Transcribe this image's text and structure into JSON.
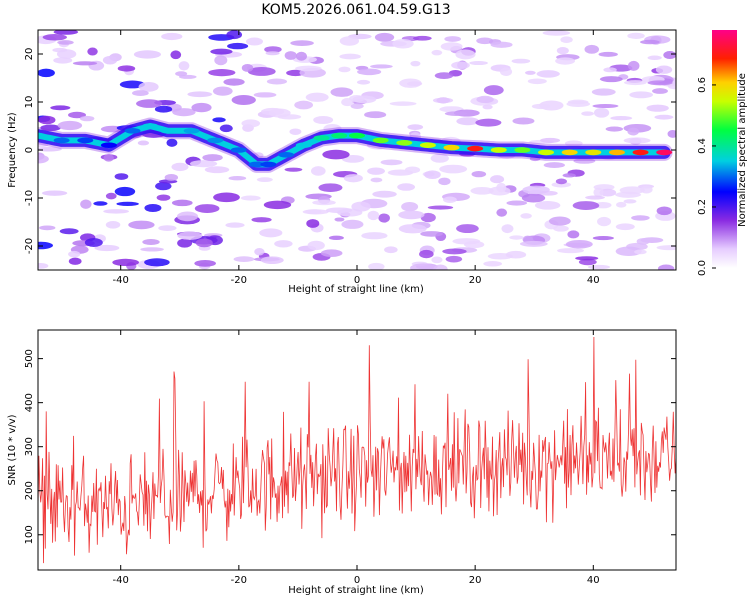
{
  "title": "KOM5.2026.061.04.59.G13",
  "colors": {
    "snr_line": "#ee3333",
    "track": "#00c0c0"
  },
  "chart_data": [
    {
      "type": "heatmap",
      "title": "KOM5.2026.061.04.59.G13",
      "xlabel": "Height of straight line (km)",
      "ylabel": "Frequency (Hz)",
      "xlim": [
        -54,
        54
      ],
      "ylim": [
        -25,
        25
      ],
      "xticks": [
        -40,
        -20,
        0,
        20,
        40
      ],
      "yticks": [
        -20,
        -10,
        0,
        10,
        20
      ],
      "xtick_labels": [
        "-40",
        "-20",
        "0",
        "20",
        "40"
      ],
      "ytick_labels": [
        "-20",
        "-10",
        "0",
        "10",
        "20"
      ],
      "colorbar": {
        "label": "Normalized spectral amplitude",
        "range": [
          0,
          0.78
        ],
        "ticks": [
          0.0,
          0.2,
          0.4,
          0.6
        ],
        "tick_labels": [
          "0.0",
          "0.2",
          "0.4",
          "0.6"
        ],
        "colormap": "rainbow (white-violet-blue-cyan-green-yellow-red-magenta)"
      },
      "ridge": {
        "x": [
          -54,
          -50,
          -46,
          -42,
          -38,
          -35,
          -32,
          -28,
          -24,
          -20,
          -17,
          -15,
          -12,
          -9,
          -6,
          -3,
          0,
          4,
          8,
          12,
          16,
          20,
          24,
          28,
          32,
          36,
          40,
          44,
          48,
          52
        ],
        "frequency": [
          3,
          2,
          2,
          1,
          4,
          5,
          4,
          4,
          2,
          0,
          -3,
          -3,
          -1,
          1,
          2.5,
          3,
          3,
          2,
          1.5,
          1,
          0.5,
          0.3,
          0,
          0,
          -0.5,
          -0.5,
          -0.5,
          -0.5,
          -0.5,
          -0.5
        ],
        "amplitude": [
          0.35,
          0.3,
          0.28,
          0.25,
          0.3,
          0.35,
          0.35,
          0.33,
          0.32,
          0.3,
          0.3,
          0.28,
          0.3,
          0.35,
          0.4,
          0.42,
          0.45,
          0.5,
          0.52,
          0.55,
          0.6,
          0.7,
          0.55,
          0.5,
          0.55,
          0.6,
          0.58,
          0.62,
          0.7,
          0.75
        ]
      }
    },
    {
      "type": "line",
      "xlabel": "Height of straight line (km)",
      "ylabel": "SNR (10 * v/v)",
      "xlim": [
        -54,
        54
      ],
      "ylim": [
        20,
        565
      ],
      "xticks": [
        -40,
        -20,
        0,
        20,
        40
      ],
      "yticks": [
        100,
        200,
        300,
        400,
        500
      ],
      "xtick_labels": [
        "-40",
        "-20",
        "0",
        "20",
        "40"
      ],
      "ytick_labels": [
        "100",
        "200",
        "300",
        "400",
        "500"
      ],
      "series": [
        {
          "name": "SNR",
          "x_start": -54,
          "x_end": 54,
          "trend_x": [
            -54,
            -40,
            -20,
            0,
            20,
            40,
            54
          ],
          "trend_mean": [
            170,
            160,
            210,
            240,
            260,
            270,
            275
          ],
          "spread": 110,
          "n_samples": 700
        }
      ]
    }
  ]
}
